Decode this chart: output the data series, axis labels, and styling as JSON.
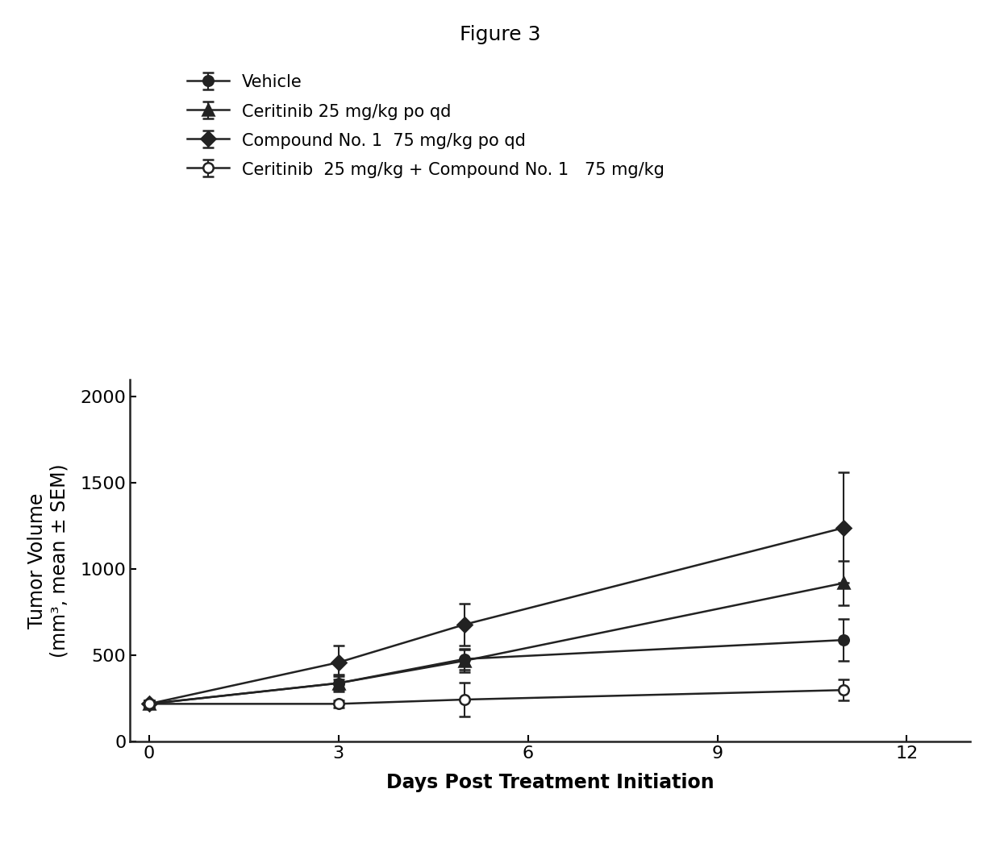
{
  "title": "Figure 3",
  "xlabel": "Days Post Treatment Initiation",
  "ylabel": "Tumor Volume\n(mm³, mean ± SEM)",
  "xlim": [
    -0.3,
    13
  ],
  "ylim": [
    0,
    2100
  ],
  "xticks": [
    0,
    3,
    6,
    9,
    12
  ],
  "yticks": [
    0,
    500,
    1000,
    1500,
    2000
  ],
  "series": [
    {
      "label": "Vehicle",
      "x": [
        0,
        3,
        5,
        11
      ],
      "y": [
        220,
        340,
        480,
        590
      ],
      "yerr": [
        20,
        40,
        60,
        120
      ],
      "color": "#222222",
      "marker": "o",
      "marker_size": 9,
      "marker_fill": "#222222",
      "linewidth": 1.8
    },
    {
      "label": "Ceritinib 25 mg/kg po qd",
      "x": [
        0,
        3,
        5,
        11
      ],
      "y": [
        220,
        340,
        470,
        920
      ],
      "yerr": [
        20,
        50,
        65,
        130
      ],
      "color": "#222222",
      "marker": "^",
      "marker_size": 10,
      "marker_fill": "#222222",
      "linewidth": 1.8
    },
    {
      "label": "Compound No. 1  75 mg/kg po qd",
      "x": [
        0,
        3,
        5,
        11
      ],
      "y": [
        220,
        460,
        680,
        1240
      ],
      "yerr": [
        20,
        100,
        120,
        320
      ],
      "color": "#222222",
      "marker": "D",
      "marker_size": 9,
      "marker_fill": "#222222",
      "linewidth": 1.8
    },
    {
      "label": "Ceritinib  25 mg/kg + Compound No. 1   75 mg/kg",
      "x": [
        0,
        3,
        5,
        11
      ],
      "y": [
        220,
        220,
        245,
        300
      ],
      "yerr": [
        20,
        20,
        100,
        60
      ],
      "color": "#222222",
      "marker": "o",
      "marker_size": 9,
      "marker_fill": "#ffffff",
      "linewidth": 1.8
    }
  ],
  "background_color": "#ffffff",
  "title_fontsize": 18,
  "label_fontsize": 17,
  "tick_fontsize": 16,
  "legend_fontsize": 15
}
